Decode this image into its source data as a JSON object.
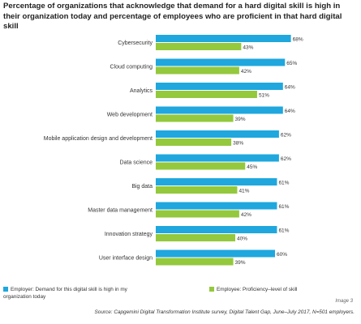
{
  "title": "Percentage of organizations that acknowledge that demand for a hard digital skill is high in their organization today and percentage of employees who are proficient in that hard digital skill",
  "colors": {
    "employer": "#1fa7de",
    "employee": "#94c83d"
  },
  "legend": {
    "employer": "Employer: Demand for this digital skill is high in my organization today",
    "employee": "Employee: Proficiency–level of skill"
  },
  "image_label": "Image 3",
  "source": "Source: Capgemini Digital Transformation Institute survey, Digital Talent Gap, June–July 2017, N=501 employers.",
  "chart_data": {
    "type": "bar",
    "orientation": "horizontal",
    "title": "Percentage of organizations that acknowledge that demand for a hard digital skill is high in their organization today and percentage of employees who are proficient in that hard digital skill",
    "categories": [
      "Cybersecurity",
      "Cloud computing",
      "Analytics",
      "Web development",
      "Mobile application design and development",
      "Data science",
      "Big data",
      "Master data management",
      "Innovation strategy",
      "User interface design"
    ],
    "series": [
      {
        "name": "Employer: Demand for this digital skill is high in my organization today",
        "values": [
          68,
          65,
          64,
          64,
          62,
          62,
          61,
          61,
          61,
          60
        ],
        "labels": [
          "68%",
          "65%",
          "64%",
          "64%",
          "62%",
          "62%",
          "61%",
          "61%",
          "61%",
          "60%"
        ]
      },
      {
        "name": "Employee: Proficiency–level of skill",
        "values": [
          43,
          42,
          51,
          39,
          38,
          45,
          41,
          42,
          40,
          39
        ],
        "labels": [
          "43%",
          "42%",
          "51%",
          "39%",
          "38%",
          "45%",
          "41%",
          "42%",
          "40%",
          "39%"
        ]
      }
    ],
    "xlim": [
      0,
      100
    ],
    "legend_position": "bottom",
    "grid": false
  }
}
